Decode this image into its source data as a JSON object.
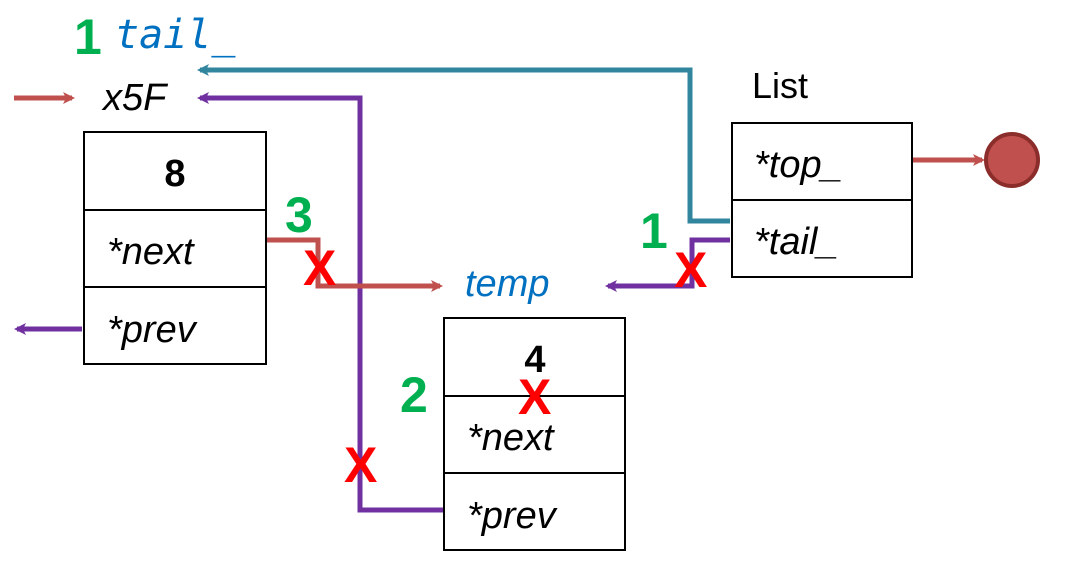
{
  "colors": {
    "green": "#00b050",
    "blue": "#0070c0",
    "red_x": "#ff0000",
    "next_arrow": "#c0504d",
    "prev_arrow": "#7030a0",
    "tail_arrow": "#31859c",
    "null_circle_fill": "#c0504d",
    "null_circle_stroke": "#8b2d2a"
  },
  "labels": {
    "tail_var": "tail_",
    "x5f": "x5F",
    "temp": "temp",
    "list": "List"
  },
  "node_a": {
    "value": "8",
    "next": "*next",
    "prev": "*prev"
  },
  "node_b": {
    "value": "4",
    "next": "*next",
    "prev": "*prev"
  },
  "list_node": {
    "top": "*top_",
    "tail": "*tail_"
  },
  "steps": [
    "1",
    "1",
    "3",
    "2"
  ],
  "marks": [
    "X",
    "X",
    "X",
    "X"
  ]
}
